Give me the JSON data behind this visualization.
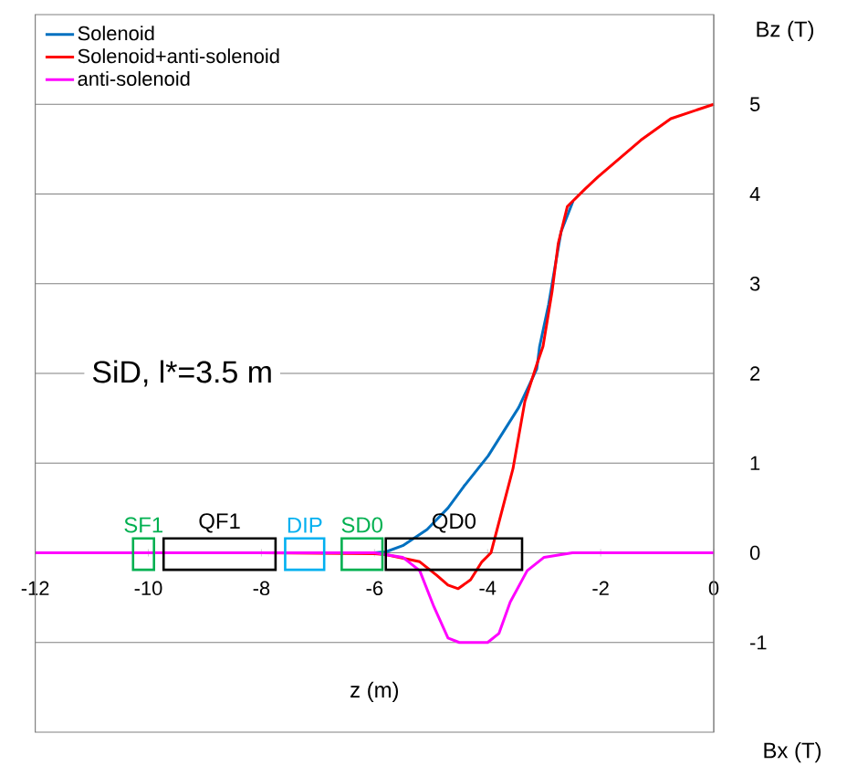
{
  "chart_data": {
    "type": "line",
    "xlabel": "z (m)",
    "ylabel": "Bz (T)",
    "xlim": [
      -12,
      0
    ],
    "ylim": [
      -2,
      6
    ],
    "xticks": [
      -12,
      -10,
      -8,
      -6,
      -4,
      -2,
      0
    ],
    "yticks": [
      -1,
      0,
      1,
      2,
      3,
      4,
      5
    ],
    "grid": "y",
    "legend": "top left",
    "series": [
      {
        "name": "Solenoid",
        "color": "#0070c0",
        "x": [
          -12,
          -10,
          -8,
          -6,
          -5.8,
          -5.5,
          -5.07,
          -4.7,
          -4.42,
          -3.99,
          -3.45,
          -3.13,
          -3.08,
          -2.92,
          -2.81,
          -2.7,
          -2.49
        ],
        "values": [
          0,
          0,
          0,
          0,
          0.01,
          0.08,
          0.26,
          0.5,
          0.74,
          1.08,
          1.62,
          2.05,
          2.3,
          2.77,
          3.18,
          3.58,
          3.92
        ]
      },
      {
        "name": "Solenoid+anti-solenoid",
        "color": "#ff0000",
        "x": [
          -12,
          -10,
          -8,
          -6,
          -5.8,
          -5.2,
          -4.9,
          -4.7,
          -4.52,
          -4.3,
          -4.1,
          -3.94,
          -3.55,
          -3.34,
          -3.13,
          -3.02,
          -2.86,
          -2.75,
          -2.59,
          -2.27,
          -2.05,
          -1.29,
          -0.76,
          0
        ],
        "values": [
          0,
          0,
          0,
          -0.01,
          -0.02,
          -0.1,
          -0.25,
          -0.36,
          -0.4,
          -0.3,
          -0.1,
          0,
          0.94,
          1.69,
          2.1,
          2.3,
          2.91,
          3.45,
          3.86,
          4.06,
          4.19,
          4.6,
          4.84,
          5.0
        ]
      },
      {
        "name": "anti-solenoid",
        "color": "#ff00ff",
        "x": [
          -12,
          -10,
          -8,
          -6,
          -5.5,
          -5.2,
          -4.95,
          -4.7,
          -4.5,
          -4.0,
          -3.8,
          -3.6,
          -3.3,
          -3.0,
          -2.5,
          -2,
          0
        ],
        "values": [
          0,
          0,
          0,
          0,
          -0.05,
          -0.2,
          -0.6,
          -0.95,
          -1.0,
          -1.0,
          -0.9,
          -0.55,
          -0.2,
          -0.05,
          0,
          0,
          0
        ]
      }
    ],
    "annotations": [
      "SiD, l*=3.5 m",
      "Bx (T)",
      "SF1",
      "QF1",
      "DIP",
      "SD0",
      "QD0"
    ]
  }
}
